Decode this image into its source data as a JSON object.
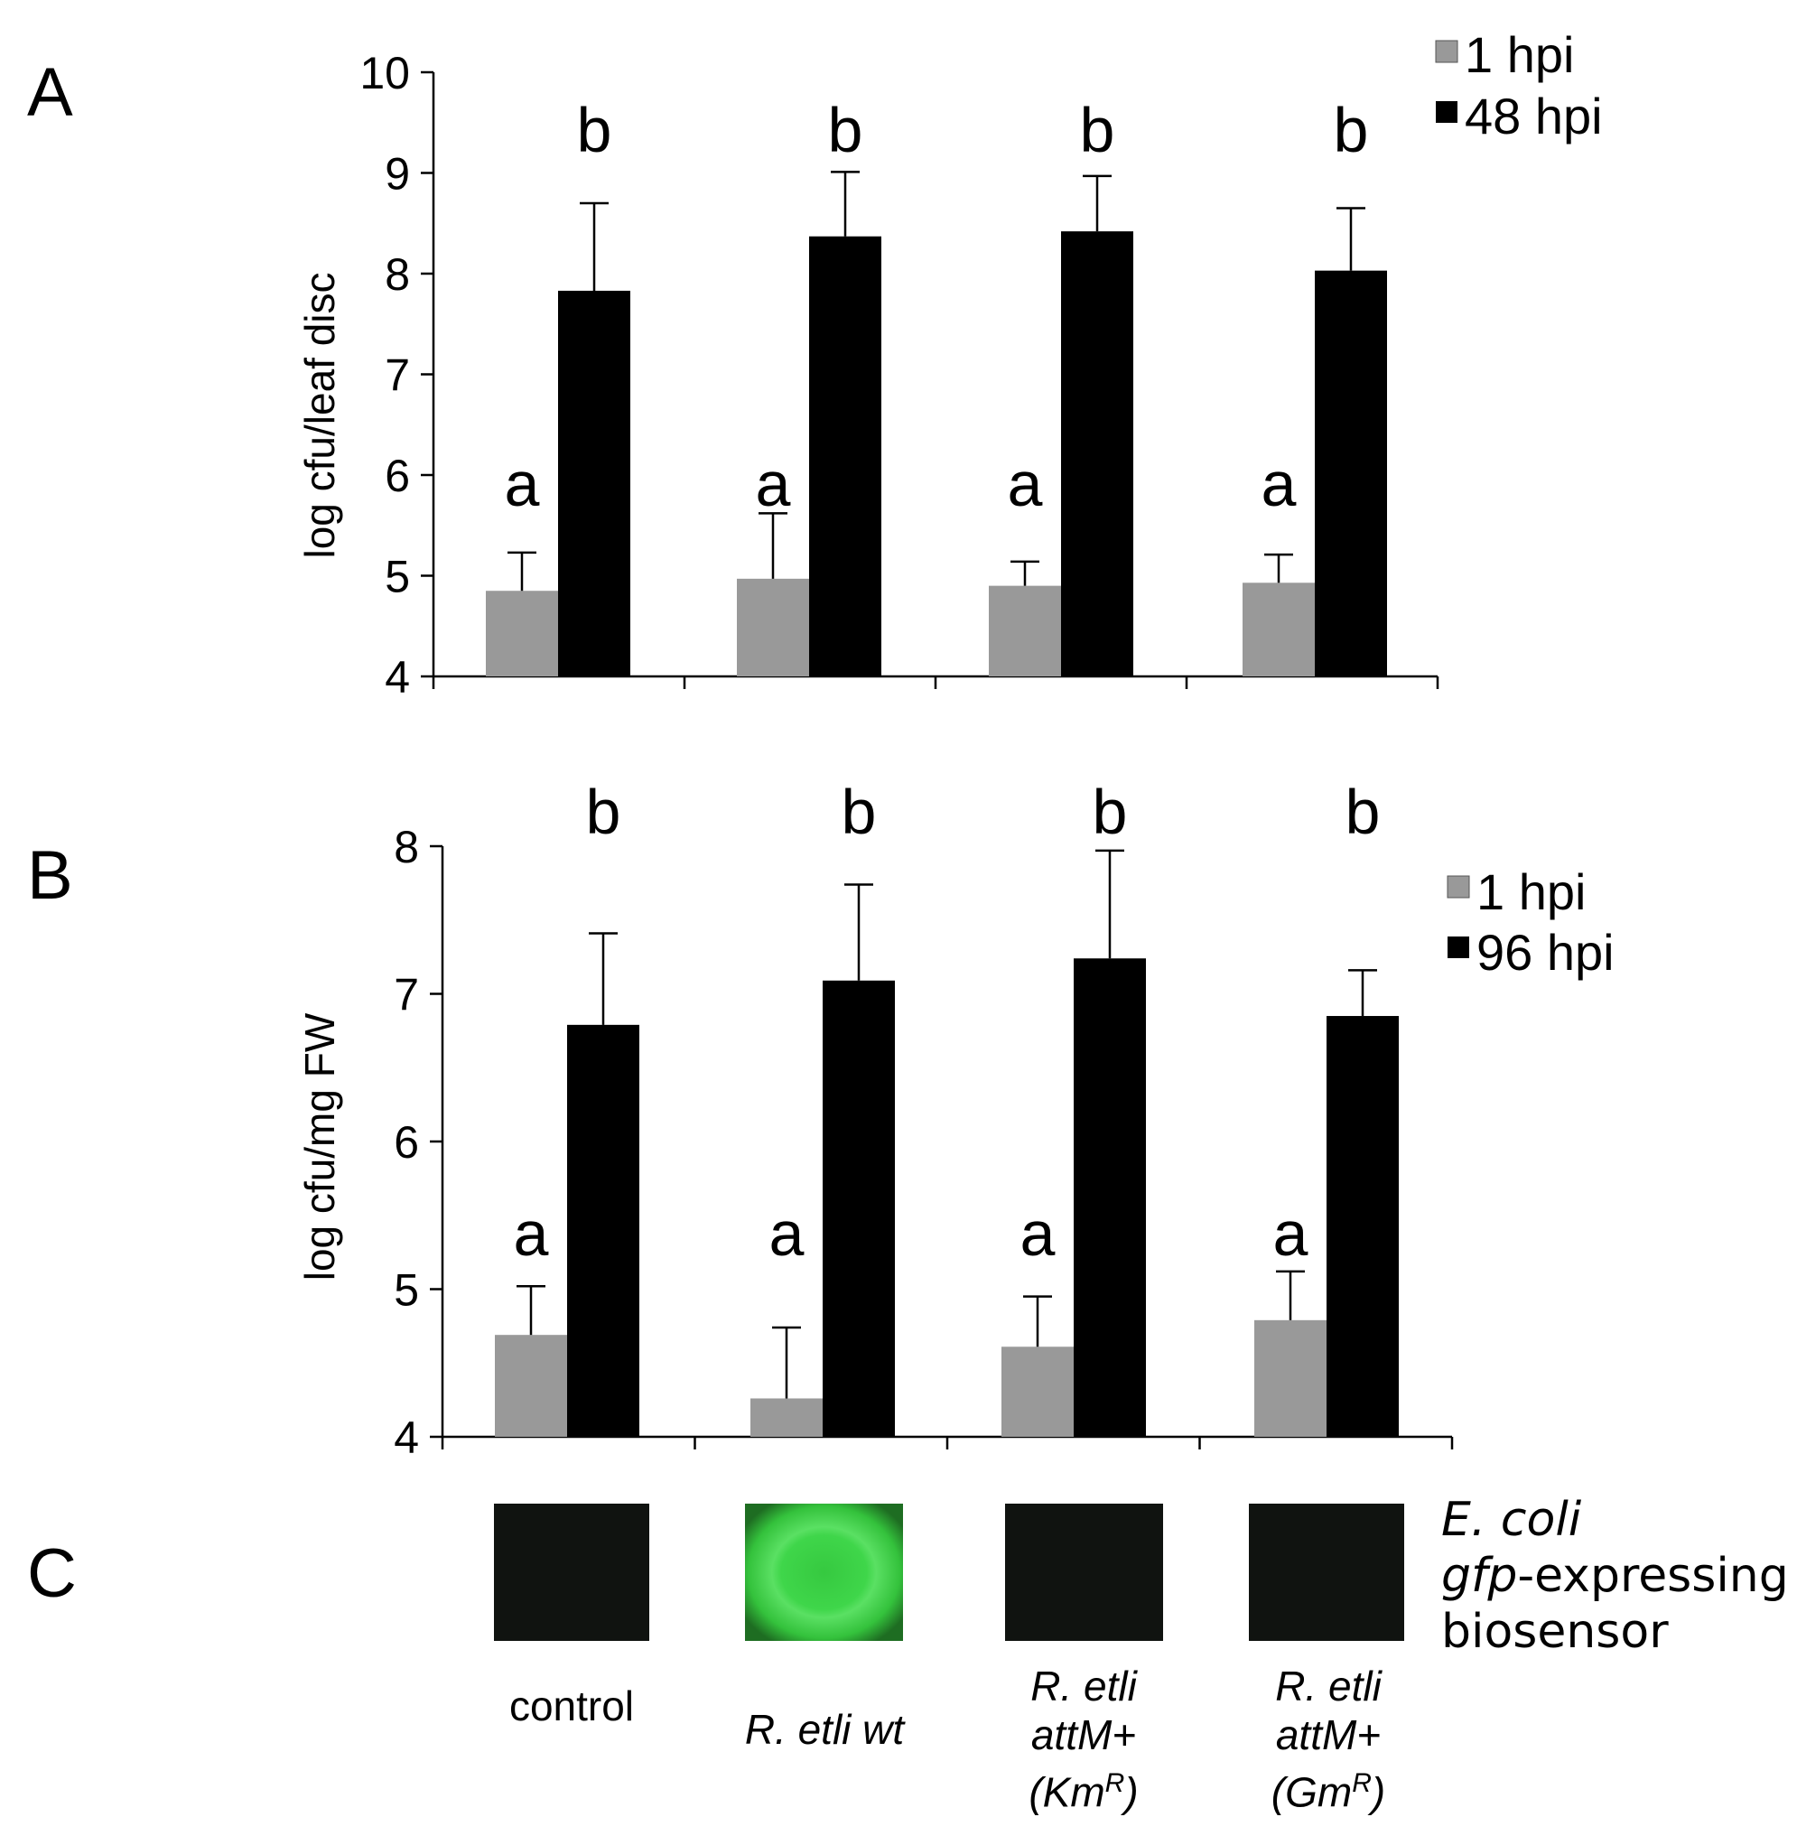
{
  "panels": {
    "A": {
      "letter": "A",
      "ylabel": "log cfu/leaf disc",
      "legend": [
        "1 hpi",
        "48 hpi"
      ]
    },
    "B": {
      "letter": "B",
      "ylabel": "log cfu/mg FW",
      "legend": [
        "1 hpi",
        "96 hpi"
      ]
    },
    "C": {
      "letter": "C",
      "biosensor_line1": "E. coli",
      "biosensor_line2_italic": "gfp",
      "biosensor_line2_rest": "-expressing",
      "biosensor_line3": "biosensor",
      "plates": [
        {
          "color": "#101310"
        },
        {
          "color": "#3fd64a"
        },
        {
          "color": "#101310"
        },
        {
          "color": "#101310"
        }
      ]
    }
  },
  "labels": {
    "control": "control",
    "wt": "R. etli wt",
    "km_line1": "R. etli",
    "km_line2": "attM+",
    "km_line3_pre": "(Km",
    "km_line3_sup": "R",
    "km_line3_post": ")",
    "gm_line1": "R. etli",
    "gm_line2": "attM+",
    "gm_line3_pre": "(Gm",
    "gm_line3_sup": "R",
    "gm_line3_post": ")"
  },
  "colors": {
    "series1": "#999999",
    "series2": "#000000"
  },
  "chart_data": [
    {
      "type": "bar",
      "panel": "A",
      "ylabel": "log cfu/leaf disc",
      "ylim": [
        4,
        10
      ],
      "yticks": [
        4,
        5,
        6,
        7,
        8,
        9,
        10
      ],
      "groups": 4,
      "series": [
        {
          "name": "1 hpi",
          "values": [
            4.85,
            4.97,
            4.9,
            4.93
          ],
          "errors": [
            0.38,
            0.65,
            0.24,
            0.28
          ],
          "letters": [
            "a",
            "a",
            "a",
            "a"
          ]
        },
        {
          "name": "48 hpi",
          "values": [
            7.83,
            8.37,
            8.42,
            8.03
          ],
          "errors": [
            0.87,
            0.64,
            0.55,
            0.62
          ],
          "letters": [
            "b",
            "b",
            "b",
            "b"
          ]
        }
      ]
    },
    {
      "type": "bar",
      "panel": "B",
      "ylabel": "log cfu/mg FW",
      "ylim": [
        4,
        8
      ],
      "yticks": [
        4,
        5,
        6,
        7,
        8
      ],
      "groups": 4,
      "series": [
        {
          "name": "1 hpi",
          "values": [
            4.69,
            4.26,
            4.61,
            4.79
          ],
          "errors": [
            0.33,
            0.48,
            0.34,
            0.33
          ],
          "letters": [
            "a",
            "a",
            "a",
            "a"
          ]
        },
        {
          "name": "96 hpi",
          "values": [
            6.79,
            7.09,
            7.24,
            6.85
          ],
          "errors": [
            0.62,
            0.65,
            0.73,
            0.31
          ],
          "letters": [
            "b",
            "b",
            "b",
            "b"
          ]
        }
      ]
    }
  ]
}
